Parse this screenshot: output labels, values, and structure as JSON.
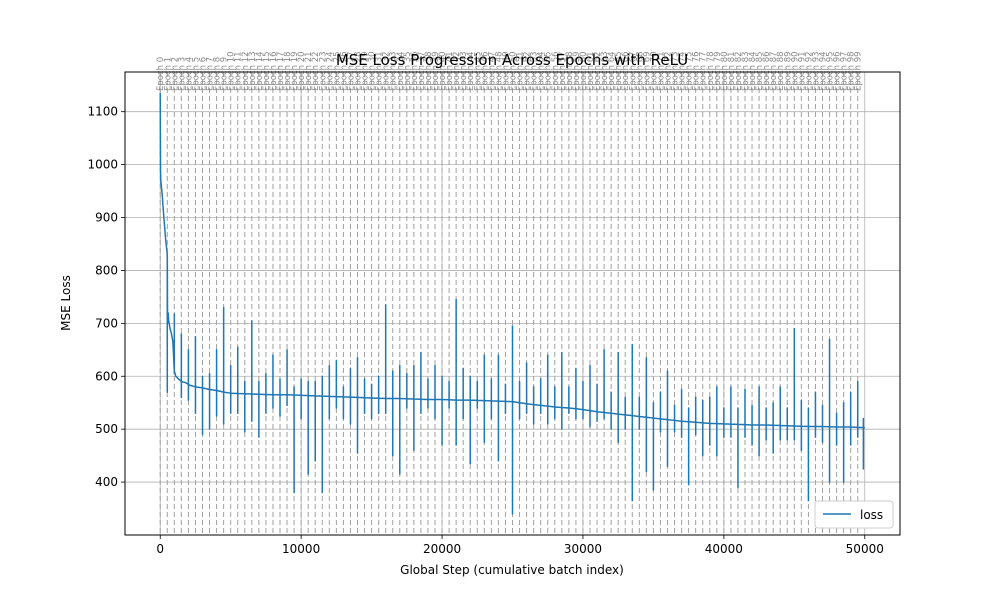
{
  "chart_data": {
    "type": "line",
    "title": "MSE Loss Progression Across Epochs with ReLU",
    "xlabel": "Global Step (cumulative batch index)",
    "ylabel": "MSE Loss",
    "xlim": [
      -2500,
      52500
    ],
    "ylim": [
      300,
      1175
    ],
    "xticks": [
      0,
      10000,
      20000,
      30000,
      40000,
      50000
    ],
    "yticks": [
      400,
      500,
      600,
      700,
      800,
      900,
      1000,
      1100
    ],
    "grid": true,
    "legend": {
      "position": "bottom-right",
      "entries": [
        "loss"
      ]
    },
    "epoch_markers": {
      "prefix": "Epoch",
      "count": 100,
      "step_interval": 500,
      "line_style": "dashed",
      "color": "#a0a0a0"
    },
    "series": [
      {
        "name": "loss",
        "color": "#1f77b4",
        "x": [
          0,
          20,
          40,
          80,
          150,
          200,
          260,
          320,
          380,
          440,
          500,
          520,
          560,
          600,
          700,
          800,
          900,
          1000,
          1100,
          1300,
          1500,
          1800,
          2100,
          2500,
          3000,
          3500,
          4000,
          4500,
          5000,
          6000,
          7000,
          8000,
          9000,
          10000,
          11000,
          12000,
          13000,
          14000,
          15000,
          16000,
          17000,
          18000,
          19000,
          20000,
          21000,
          22000,
          23000,
          24000,
          25000,
          26000,
          27000,
          28000,
          29000,
          30000,
          31000,
          32000,
          33000,
          34000,
          35000,
          36000,
          37000,
          38000,
          39000,
          40000,
          41000,
          42000,
          43000,
          44000,
          45000,
          46000,
          47000,
          48000,
          49000,
          50000
        ],
        "y": [
          1135,
          990,
          970,
          960,
          940,
          920,
          900,
          880,
          860,
          845,
          830,
          700,
          720,
          705,
          690,
          680,
          665,
          610,
          600,
          595,
          590,
          588,
          583,
          580,
          578,
          575,
          573,
          570,
          568,
          567,
          566,
          565,
          565,
          564,
          563,
          562,
          561,
          560,
          559,
          558,
          558,
          557,
          556,
          556,
          555,
          555,
          554,
          553,
          552,
          548,
          545,
          542,
          540,
          537,
          533,
          530,
          527,
          524,
          521,
          518,
          515,
          513,
          511,
          510,
          509,
          508,
          508,
          507,
          506,
          505,
          505,
          504,
          504,
          503
        ]
      }
    ],
    "spikes": [
      {
        "x": 500,
        "hi": 760,
        "lo": 570
      },
      {
        "x": 1000,
        "hi": 718,
        "lo": 605
      },
      {
        "x": 1500,
        "hi": 680,
        "lo": 560
      },
      {
        "x": 2000,
        "hi": 650,
        "lo": 555
      },
      {
        "x": 2500,
        "hi": 675,
        "lo": 530
      },
      {
        "x": 3000,
        "hi": 600,
        "lo": 490
      },
      {
        "x": 3500,
        "hi": 605,
        "lo": 500
      },
      {
        "x": 4000,
        "hi": 650,
        "lo": 525
      },
      {
        "x": 4500,
        "hi": 730,
        "lo": 510
      },
      {
        "x": 5000,
        "hi": 620,
        "lo": 530
      },
      {
        "x": 5500,
        "hi": 655,
        "lo": 530
      },
      {
        "x": 6000,
        "hi": 590,
        "lo": 495
      },
      {
        "x": 6500,
        "hi": 705,
        "lo": 515
      },
      {
        "x": 7000,
        "hi": 590,
        "lo": 485
      },
      {
        "x": 7500,
        "hi": 605,
        "lo": 530
      },
      {
        "x": 8000,
        "hi": 640,
        "lo": 540
      },
      {
        "x": 8500,
        "hi": 595,
        "lo": 525
      },
      {
        "x": 9000,
        "hi": 650,
        "lo": 545
      },
      {
        "x": 9500,
        "hi": 580,
        "lo": 380
      },
      {
        "x": 10000,
        "hi": 595,
        "lo": 520
      },
      {
        "x": 10500,
        "hi": 590,
        "lo": 415
      },
      {
        "x": 11000,
        "hi": 590,
        "lo": 440
      },
      {
        "x": 11500,
        "hi": 600,
        "lo": 380
      },
      {
        "x": 12000,
        "hi": 620,
        "lo": 520
      },
      {
        "x": 12500,
        "hi": 630,
        "lo": 540
      },
      {
        "x": 13000,
        "hi": 580,
        "lo": 520
      },
      {
        "x": 13500,
        "hi": 615,
        "lo": 510
      },
      {
        "x": 14000,
        "hi": 635,
        "lo": 455
      },
      {
        "x": 14500,
        "hi": 595,
        "lo": 530
      },
      {
        "x": 15000,
        "hi": 585,
        "lo": 520
      },
      {
        "x": 15500,
        "hi": 600,
        "lo": 530
      },
      {
        "x": 16000,
        "hi": 735,
        "lo": 530
      },
      {
        "x": 16500,
        "hi": 610,
        "lo": 450
      },
      {
        "x": 17000,
        "hi": 620,
        "lo": 415
      },
      {
        "x": 17500,
        "hi": 605,
        "lo": 540
      },
      {
        "x": 18000,
        "hi": 620,
        "lo": 460
      },
      {
        "x": 18500,
        "hi": 645,
        "lo": 530
      },
      {
        "x": 19000,
        "hi": 595,
        "lo": 540
      },
      {
        "x": 19500,
        "hi": 620,
        "lo": 520
      },
      {
        "x": 20000,
        "hi": 600,
        "lo": 470
      },
      {
        "x": 20500,
        "hi": 590,
        "lo": 540
      },
      {
        "x": 21000,
        "hi": 745,
        "lo": 470
      },
      {
        "x": 21500,
        "hi": 615,
        "lo": 520
      },
      {
        "x": 22000,
        "hi": 600,
        "lo": 435
      },
      {
        "x": 22500,
        "hi": 590,
        "lo": 540
      },
      {
        "x": 23000,
        "hi": 640,
        "lo": 475
      },
      {
        "x": 23500,
        "hi": 595,
        "lo": 520
      },
      {
        "x": 24000,
        "hi": 640,
        "lo": 440
      },
      {
        "x": 24500,
        "hi": 585,
        "lo": 530
      },
      {
        "x": 25000,
        "hi": 695,
        "lo": 340
      },
      {
        "x": 25500,
        "hi": 590,
        "lo": 520
      },
      {
        "x": 26000,
        "hi": 625,
        "lo": 530
      },
      {
        "x": 26500,
        "hi": 580,
        "lo": 510
      },
      {
        "x": 27000,
        "hi": 595,
        "lo": 530
      },
      {
        "x": 27500,
        "hi": 640,
        "lo": 510
      },
      {
        "x": 28000,
        "hi": 580,
        "lo": 520
      },
      {
        "x": 28500,
        "hi": 645,
        "lo": 500
      },
      {
        "x": 29000,
        "hi": 580,
        "lo": 530
      },
      {
        "x": 29500,
        "hi": 615,
        "lo": 520
      },
      {
        "x": 30000,
        "hi": 590,
        "lo": 520
      },
      {
        "x": 30500,
        "hi": 620,
        "lo": 505
      },
      {
        "x": 31000,
        "hi": 585,
        "lo": 515
      },
      {
        "x": 31500,
        "hi": 650,
        "lo": 520
      },
      {
        "x": 32000,
        "hi": 570,
        "lo": 500
      },
      {
        "x": 32500,
        "hi": 645,
        "lo": 475
      },
      {
        "x": 33000,
        "hi": 560,
        "lo": 500
      },
      {
        "x": 33500,
        "hi": 660,
        "lo": 365
      },
      {
        "x": 34000,
        "hi": 560,
        "lo": 500
      },
      {
        "x": 34500,
        "hi": 635,
        "lo": 420
      },
      {
        "x": 35000,
        "hi": 550,
        "lo": 385
      },
      {
        "x": 35500,
        "hi": 570,
        "lo": 495
      },
      {
        "x": 36000,
        "hi": 610,
        "lo": 430
      },
      {
        "x": 36500,
        "hi": 545,
        "lo": 495
      },
      {
        "x": 37000,
        "hi": 575,
        "lo": 485
      },
      {
        "x": 37500,
        "hi": 540,
        "lo": 395
      },
      {
        "x": 38000,
        "hi": 560,
        "lo": 490
      },
      {
        "x": 38500,
        "hi": 555,
        "lo": 450
      },
      {
        "x": 39000,
        "hi": 560,
        "lo": 470
      },
      {
        "x": 39500,
        "hi": 580,
        "lo": 450
      },
      {
        "x": 40000,
        "hi": 540,
        "lo": 485
      },
      {
        "x": 40500,
        "hi": 580,
        "lo": 485
      },
      {
        "x": 41000,
        "hi": 540,
        "lo": 390
      },
      {
        "x": 41500,
        "hi": 575,
        "lo": 485
      },
      {
        "x": 42000,
        "hi": 545,
        "lo": 470
      },
      {
        "x": 42500,
        "hi": 580,
        "lo": 450
      },
      {
        "x": 43000,
        "hi": 540,
        "lo": 480
      },
      {
        "x": 43500,
        "hi": 550,
        "lo": 455
      },
      {
        "x": 44000,
        "hi": 580,
        "lo": 480
      },
      {
        "x": 44500,
        "hi": 540,
        "lo": 480
      },
      {
        "x": 45000,
        "hi": 690,
        "lo": 480
      },
      {
        "x": 45500,
        "hi": 555,
        "lo": 460
      },
      {
        "x": 46000,
        "hi": 540,
        "lo": 365
      },
      {
        "x": 46500,
        "hi": 570,
        "lo": 485
      },
      {
        "x": 47000,
        "hi": 545,
        "lo": 475
      },
      {
        "x": 47500,
        "hi": 670,
        "lo": 400
      },
      {
        "x": 48000,
        "hi": 530,
        "lo": 470
      },
      {
        "x": 48500,
        "hi": 550,
        "lo": 400
      },
      {
        "x": 49000,
        "hi": 570,
        "lo": 470
      },
      {
        "x": 49500,
        "hi": 590,
        "lo": 485
      },
      {
        "x": 49900,
        "hi": 520,
        "lo": 425
      }
    ]
  }
}
